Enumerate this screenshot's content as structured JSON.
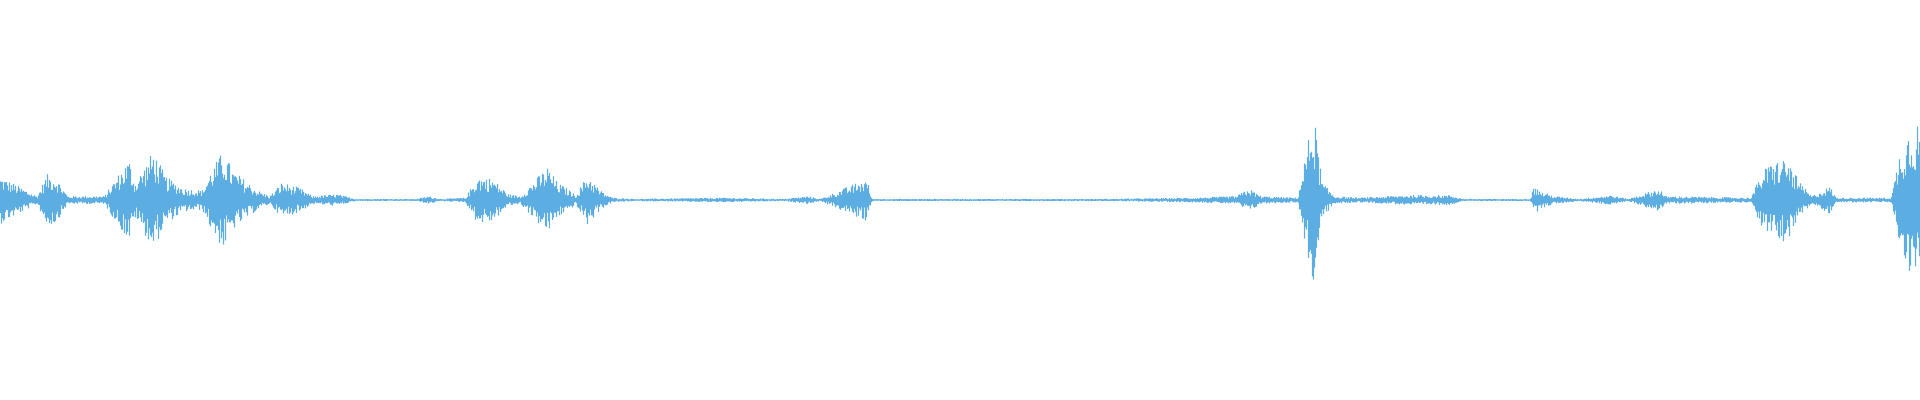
{
  "chart_data": {
    "type": "area",
    "title": "",
    "xlabel": "",
    "ylabel": "",
    "grid": false,
    "symmetric": true,
    "color": "#5dade2",
    "background": "#ffffff",
    "ylim": [
      -1,
      1
    ],
    "xlim": [
      0,
      100
    ],
    "x": [
      0,
      0.96,
      1.91,
      2.42,
      2.87,
      3.51,
      5.42,
      5.74,
      6.7,
      7.02,
      7.97,
      8.61,
      9.57,
      10.52,
      10.97,
      11.61,
      12.12,
      13.39,
      14.03,
      14.67,
      15.63,
      16.26,
      17.54,
      18.5,
      21.68,
      22.32,
      22.96,
      24.23,
      24.87,
      25.64,
      26.47,
      27.1,
      27.74,
      28.51,
      29.02,
      29.66,
      29.97,
      30.61,
      31.25,
      31.89,
      33.16,
      37.63,
      40.82,
      42.09,
      42.73,
      45.15,
      45.41,
      57.4,
      62.18,
      64.41,
      65.05,
      65.69,
      67.6,
      68.43,
      68.88,
      69.52,
      70.79,
      73.34,
      75.57,
      76.21,
      79.72,
      79.91,
      80.36,
      80.99,
      82.27,
      83.93,
      84.82,
      86.48,
      86.73,
      91.2,
      91.84,
      92.47,
      93.11,
      93.75,
      94.39,
      95.34,
      95.66,
      98.53,
      98.98,
      99.49,
      100
    ],
    "y": [
      0.12,
      0.07,
      0.02,
      0.13,
      0.12,
      0.02,
      0.02,
      0.07,
      0.21,
      0.09,
      0.25,
      0.12,
      0.06,
      0.05,
      0.15,
      0.25,
      0.15,
      0.05,
      0.02,
      0.09,
      0.06,
      0.02,
      0.03,
      0.006,
      0.006,
      0.02,
      0.006,
      0.012,
      0.12,
      0.11,
      0.03,
      0.02,
      0.09,
      0.17,
      0.09,
      0.05,
      0.025,
      0.13,
      0.05,
      0.012,
      0.006,
      0.012,
      0.006,
      0.02,
      0.006,
      0.11,
      0.006,
      0.006,
      0.012,
      0.02,
      0.06,
      0.02,
      0.012,
      0.45,
      0.09,
      0.02,
      0.012,
      0.025,
      0.025,
      0.006,
      0.006,
      0.07,
      0.04,
      0.02,
      0.006,
      0.025,
      0.006,
      0.06,
      0.02,
      0.012,
      0.15,
      0.2,
      0.21,
      0.09,
      0.02,
      0.07,
      0.012,
      0.012,
      0.25,
      0.37,
      0.4
    ]
  }
}
